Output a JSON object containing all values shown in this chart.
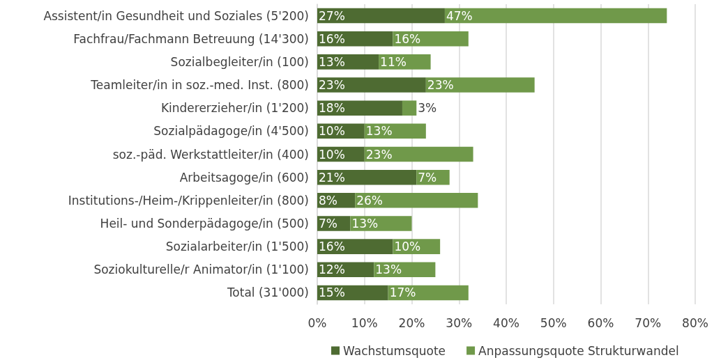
{
  "chart_data": {
    "type": "bar",
    "orientation": "horizontal",
    "stacked": true,
    "categories": [
      "Assistent/in Gesundheit und Soziales (5'200)",
      "Fachfrau/Fachmann Betreuung (14'300)",
      "Sozialbegleiter/in (100)",
      "Teamleiter/in in soz.-med. Inst. (800)",
      "Kindererzieher/in (1'200)",
      "Sozialpädagoge/in (4'500)",
      "soz.-päd. Werkstattleiter/in (400)",
      "Arbeitsagoge/in (600)",
      "Institutions-/Heim-/Krippenleiter/in (800)",
      "Heil- und Sonderpädagoge/in (500)",
      "Sozialarbeiter/in (1'500)",
      "Soziokulturelle/r Animator/in (1'100)",
      "Total (31'000)"
    ],
    "series": [
      {
        "name": "Wachstumsquote",
        "color": "#4e6b32",
        "values": [
          27,
          16,
          13,
          23,
          18,
          10,
          10,
          21,
          8,
          7,
          16,
          12,
          15
        ],
        "value_labels": [
          "27%",
          "16%",
          "13%",
          "23%",
          "18%",
          "10%",
          "10%",
          "21%",
          "8%",
          "7%",
          "16%",
          "12%",
          "15%"
        ]
      },
      {
        "name": "Anpassungsquote Strukturwandel",
        "color": "#70994a",
        "values": [
          47,
          16,
          11,
          23,
          3,
          13,
          23,
          7,
          26,
          13,
          10,
          13,
          17
        ],
        "value_labels": [
          "47%",
          "16%",
          "11%",
          "23%",
          "3%",
          "13%",
          "23%",
          "7%",
          "26%",
          "13%",
          "10%",
          "13%",
          "17%"
        ]
      }
    ],
    "xlim": [
      0,
      80
    ],
    "xticks": [
      {
        "value": 0,
        "label": "0%"
      },
      {
        "value": 10,
        "label": "10%"
      },
      {
        "value": 20,
        "label": "20%"
      },
      {
        "value": 30,
        "label": "30%"
      },
      {
        "value": 40,
        "label": "40%"
      },
      {
        "value": 50,
        "label": "50%"
      },
      {
        "value": 60,
        "label": "60%"
      },
      {
        "value": 70,
        "label": "70%"
      },
      {
        "value": 80,
        "label": "80%"
      }
    ],
    "grid": "x",
    "legend": "bottom"
  }
}
